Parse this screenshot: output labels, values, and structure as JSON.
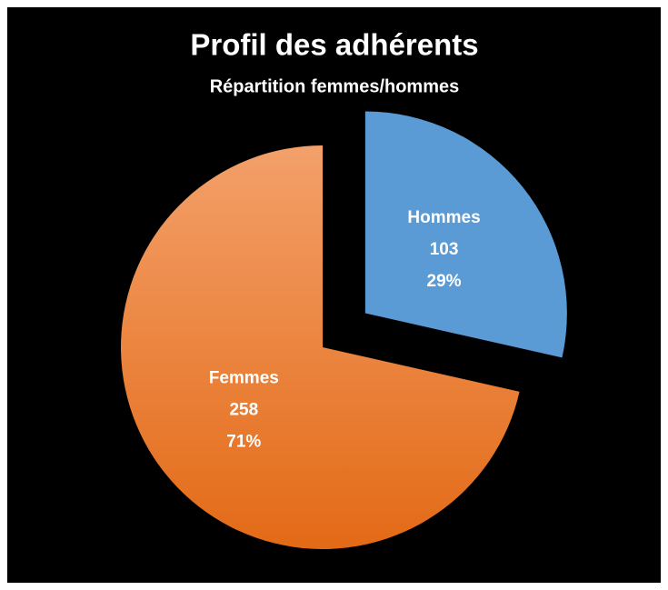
{
  "chart_data": {
    "type": "pie",
    "title": "Profil des adhérents",
    "subtitle": "Répartition femmes/hommes",
    "categories": [
      "Hommes",
      "Femmes"
    ],
    "values": [
      103,
      258
    ],
    "percentage_labels": [
      "29%",
      "71%"
    ],
    "colors": [
      "#5b9bd5",
      "#ee7a2c"
    ]
  }
}
